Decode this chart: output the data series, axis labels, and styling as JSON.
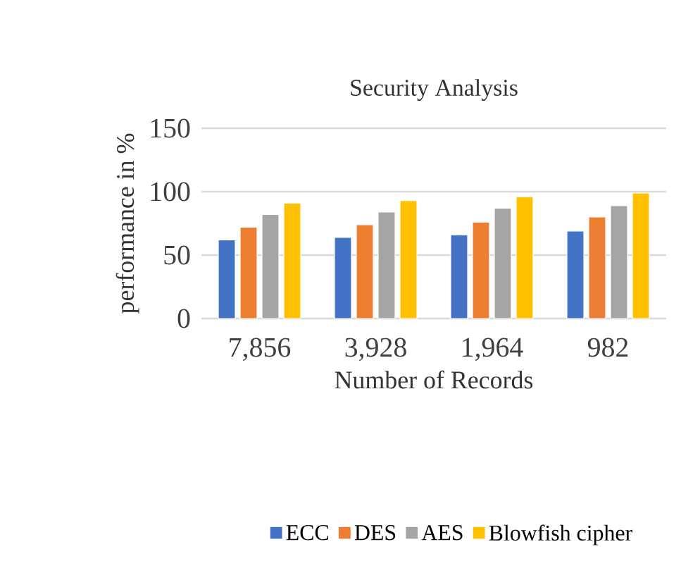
{
  "chart_data": {
    "type": "bar",
    "title": "Security Analysis",
    "xlabel": "Number of Records",
    "ylabel": "performance in %",
    "categories": [
      "7,856",
      "3,928",
      "1,964",
      "982"
    ],
    "series": [
      {
        "name": "ECC",
        "color": "#4472c4",
        "values": [
          62,
          64,
          66,
          69
        ]
      },
      {
        "name": "DES",
        "color": "#ed7d31",
        "values": [
          72,
          74,
          76,
          80
        ]
      },
      {
        "name": "AES",
        "color": "#a5a5a5",
        "values": [
          82,
          84,
          87,
          89
        ]
      },
      {
        "name": "Blowfish cipher",
        "color": "#ffc000",
        "values": [
          91,
          93,
          96,
          99
        ]
      }
    ],
    "ylim": [
      0,
      150
    ],
    "yticks": [
      0,
      50,
      100,
      150
    ],
    "grid": "y",
    "legend": "bottom"
  }
}
